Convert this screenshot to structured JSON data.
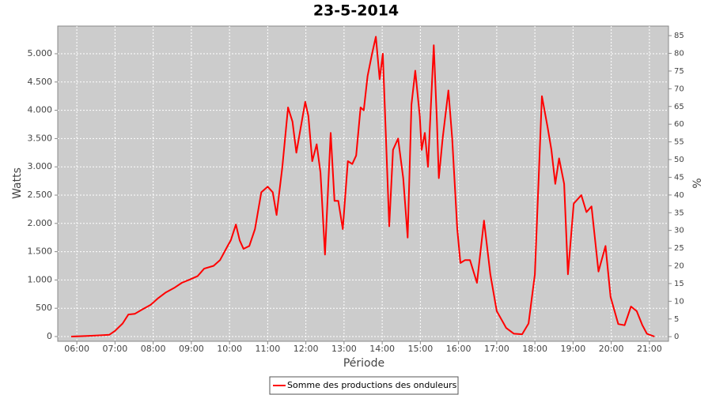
{
  "chart_data": {
    "type": "line",
    "title": "23-5-2014",
    "x_label": "Période",
    "y_label": "Watts",
    "y2_label": "%",
    "x": [
      "05:51",
      "06:16",
      "06:41",
      "06:51",
      "07:00",
      "07:12",
      "07:21",
      "07:31",
      "07:43",
      "07:56",
      "08:08",
      "08:20",
      "08:33",
      "08:45",
      "08:58",
      "09:10",
      "09:20",
      "09:35",
      "09:45",
      "09:57",
      "10:02",
      "10:10",
      "10:16",
      "10:22",
      "10:31",
      "10:40",
      "10:50",
      "11:00",
      "11:08",
      "11:14",
      "11:23",
      "11:32",
      "11:39",
      "11:45",
      "11:52",
      "11:59",
      "12:04",
      "12:10",
      "12:17",
      "12:23",
      "12:30",
      "12:39",
      "12:45",
      "12:51",
      "12:58",
      "13:06",
      "13:13",
      "13:19",
      "13:26",
      "13:31",
      "13:37",
      "13:44",
      "13:50",
      "13:56",
      "14:01",
      "14:06",
      "14:11",
      "14:17",
      "14:25",
      "14:33",
      "14:40",
      "14:46",
      "14:52",
      "14:59",
      "15:02",
      "15:07",
      "15:12",
      "15:21",
      "15:26",
      "15:29",
      "15:35",
      "15:44",
      "15:50",
      "15:58",
      "16:03",
      "16:10",
      "16:18",
      "16:29",
      "16:40",
      "16:50",
      "17:00",
      "17:15",
      "17:27",
      "17:40",
      "17:50",
      "18:00",
      "18:11",
      "18:20",
      "18:26",
      "18:32",
      "18:38",
      "18:46",
      "18:52",
      "19:01",
      "19:13",
      "19:21",
      "19:29",
      "19:40",
      "19:51",
      "19:59",
      "20:11",
      "20:21",
      "20:31",
      "20:40",
      "20:49",
      "20:56",
      "21:08"
    ],
    "series": [
      {
        "name": "Somme des productions des onduleurs",
        "color": "#ff0000",
        "values": [
          0,
          10,
          25,
          30,
          100,
          230,
          390,
          400,
          480,
          560,
          680,
          780,
          860,
          950,
          1010,
          1070,
          1200,
          1250,
          1350,
          1600,
          1700,
          1980,
          1700,
          1550,
          1600,
          1900,
          2550,
          2650,
          2550,
          2150,
          3000,
          4050,
          3800,
          3250,
          3700,
          4150,
          3900,
          3100,
          3400,
          2900,
          1450,
          3600,
          2400,
          2400,
          1900,
          3100,
          3050,
          3200,
          4050,
          4000,
          4600,
          5000,
          5300,
          4550,
          5000,
          3500,
          1950,
          3300,
          3500,
          2800,
          1750,
          4100,
          4700,
          3900,
          3300,
          3600,
          3000,
          5150,
          3800,
          2800,
          3500,
          4350,
          3500,
          1900,
          1300,
          1350,
          1350,
          950,
          2050,
          1100,
          450,
          150,
          50,
          40,
          230,
          1100,
          4250,
          3700,
          3300,
          2700,
          3150,
          2700,
          1100,
          2350,
          2500,
          2200,
          2300,
          1150,
          1600,
          700,
          220,
          200,
          530,
          450,
          200,
          50,
          0
        ]
      }
    ],
    "xlim": [
      "05:30",
      "21:30"
    ],
    "xticks": [
      "06:00",
      "07:00",
      "08:00",
      "09:00",
      "10:00",
      "11:00",
      "12:00",
      "13:00",
      "14:00",
      "15:00",
      "16:00",
      "17:00",
      "18:00",
      "19:00",
      "20:00",
      "21:00"
    ],
    "ylim": [
      -84,
      5489
    ],
    "yticks": [
      0,
      500,
      {
        "value": 1000,
        "label": "1.000"
      },
      {
        "value": 1500,
        "label": "1.500"
      },
      {
        "value": 2000,
        "label": "2.000"
      },
      {
        "value": 2500,
        "label": "2.500"
      },
      {
        "value": 3000,
        "label": "3.000"
      },
      {
        "value": 3500,
        "label": "3.500"
      },
      {
        "value": 4000,
        "label": "4.000"
      },
      {
        "value": 4500,
        "label": "4.500"
      },
      {
        "value": 5000,
        "label": "5.000"
      }
    ],
    "y2lim": [
      -1.3,
      87.7
    ],
    "y2ticks": [
      0,
      5,
      10,
      15,
      20,
      25,
      30,
      35,
      40,
      45,
      50,
      55,
      60,
      65,
      70,
      75,
      80,
      85
    ],
    "grid": true,
    "background": "#cccccc",
    "legend": "bottom"
  }
}
